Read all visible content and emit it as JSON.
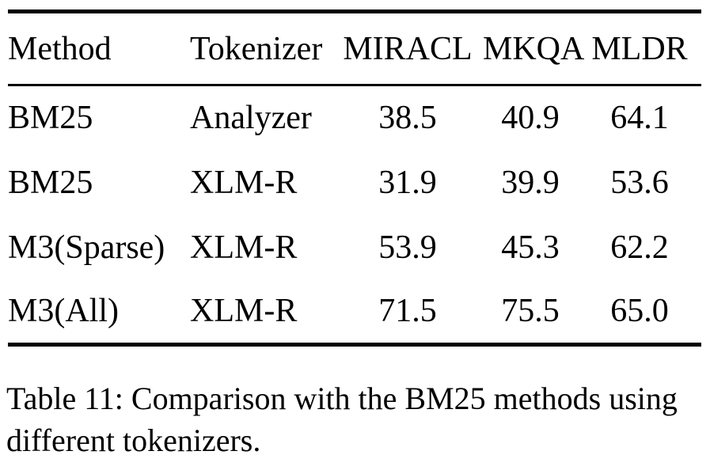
{
  "table": {
    "headers": [
      "Method",
      "Tokenizer",
      "MIRACL",
      "MKQA",
      "MLDR"
    ],
    "rows": [
      {
        "cells": [
          "BM25",
          "Analyzer",
          "38.5",
          "40.9",
          "64.1"
        ]
      },
      {
        "cells": [
          "BM25",
          "XLM-R",
          "31.9",
          "39.9",
          "53.6"
        ]
      },
      {
        "cells": [
          "M3(Sparse)",
          "XLM-R",
          "53.9",
          "45.3",
          "62.2"
        ]
      },
      {
        "cells": [
          "M3(All)",
          "XLM-R",
          "71.5",
          "75.5",
          "65.0"
        ]
      }
    ]
  },
  "caption": {
    "lines": [
      "Table 11: Comparison with the BM25 methods using",
      "different tokenizers."
    ]
  },
  "colors": {
    "text": "#000000",
    "background": "#ffffff",
    "rule": "#000000"
  }
}
